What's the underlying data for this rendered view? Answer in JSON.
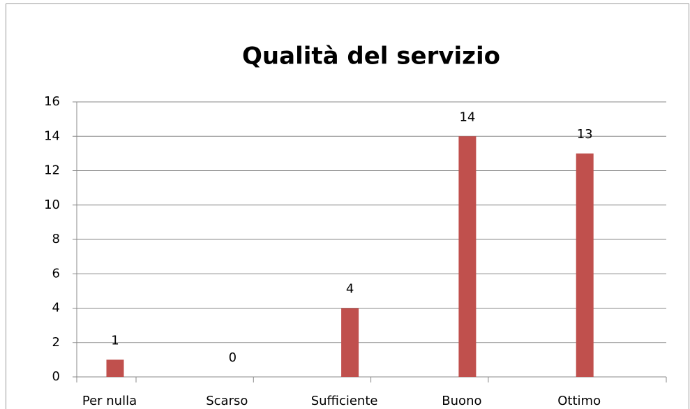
{
  "chart_data": {
    "type": "bar",
    "title": "Qualità del servizio",
    "categories": [
      "Per nulla",
      "Scarso",
      "Sufficiente",
      "Buono",
      "Ottimo"
    ],
    "values": [
      1,
      0,
      4,
      14,
      13
    ],
    "color": "#c0504d",
    "ylim": [
      0,
      16
    ],
    "yticks": [
      0,
      2,
      4,
      6,
      8,
      10,
      12,
      14,
      16
    ],
    "grid": true
  }
}
